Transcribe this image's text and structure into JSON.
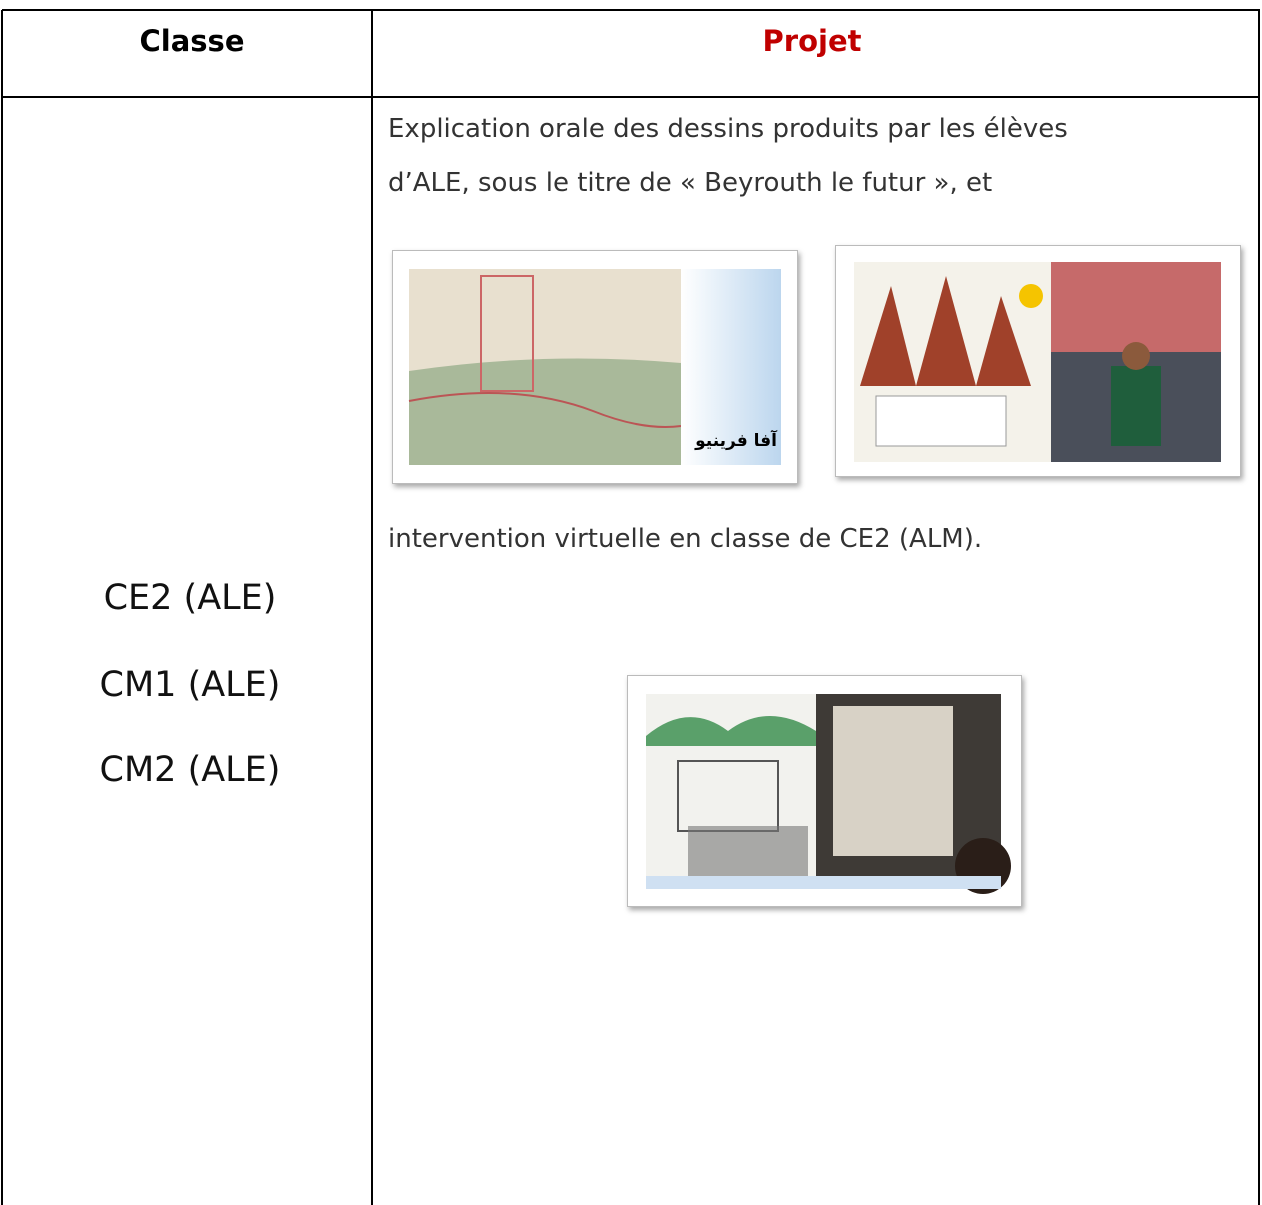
{
  "table": {
    "header": [
      "Classe",
      "Projet"
    ],
    "classes": [
      "CE2 (ALE)",
      "CM1 (ALE)",
      "CM2 (ALE)"
    ],
    "project": {
      "lines": [
        "Explication orale des dessins produits par les élèves",
        "d’ALE, sous le titre de « Beyrouth le futur », et",
        "intervention virtuelle en classe de CE2 (ALM)."
      ],
      "image_captions": [
        "آفا فرينيو"
      ]
    }
  }
}
